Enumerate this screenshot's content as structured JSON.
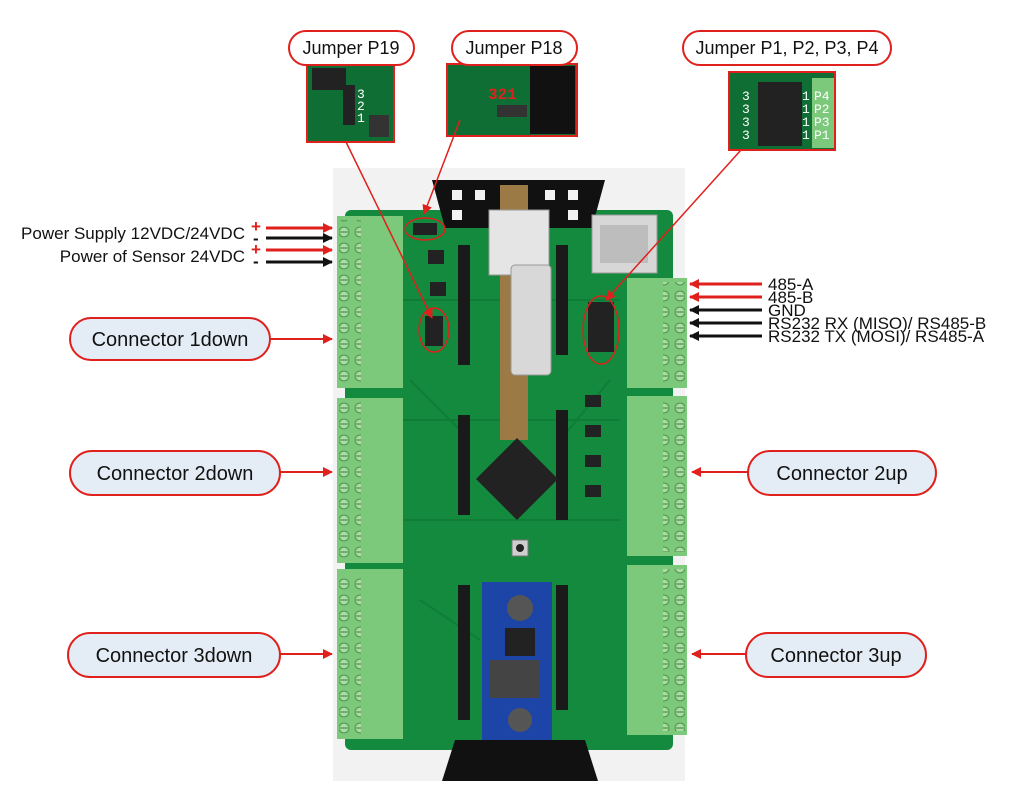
{
  "jumpers": {
    "p19": {
      "title": "Jumper P19",
      "pins": [
        "3",
        "2",
        "1"
      ]
    },
    "p18": {
      "title": "Jumper P18",
      "pins": "321"
    },
    "p1234": {
      "title": "Jumper P1, P2, P3, P4",
      "rows": [
        {
          "left": "3",
          "mid": "1",
          "name": "P4"
        },
        {
          "left": "3",
          "mid": "1",
          "name": "P2"
        },
        {
          "left": "3",
          "mid": "1",
          "name": "P3"
        },
        {
          "left": "3",
          "mid": "1",
          "name": "P1"
        }
      ]
    }
  },
  "power": {
    "supply_label": "Power Supply 12VDC/24VDC",
    "sensor_label": "Power of Sensor 24VDC",
    "plus": "+",
    "minus": "-"
  },
  "comm": {
    "lines": [
      "485-A",
      "485-B",
      "GND",
      "RS232 RX (MISO)/ RS485-B",
      "RS232 TX (MOSI)/ RS485-A"
    ]
  },
  "connectors": {
    "c1down": "Connector 1down",
    "c2down": "Connector 2down",
    "c3down": "Connector 3down",
    "c2up": "Connector 2up",
    "c3up": "Connector 3up"
  },
  "colors": {
    "pcb": "#138a3e",
    "terminal": "#7dc97b",
    "callout_border": "#e0201c",
    "callout_fill": "#e4edf6",
    "arrow_red": "#e0201c",
    "arrow_black": "#111111"
  }
}
